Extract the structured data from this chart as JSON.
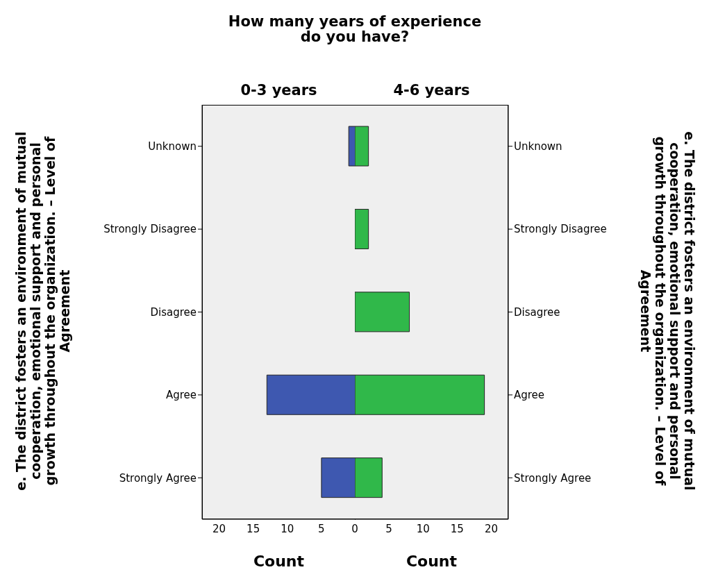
{
  "chart_data": [
    {
      "type": "bar",
      "orientation": "horizontal",
      "title": "How many years of experience do you have?",
      "subtitle": "0-3 years",
      "xlabel": "Count",
      "ylabel": "e. The district fosters an environment of mutual cooperation, emotional support and personal growth throughout the organization. – Level of Agreement",
      "categories": [
        "Unknown",
        "Strongly Disagree",
        "Disagree",
        "Agree",
        "Strongly Agree"
      ],
      "series": [
        {
          "color": "#3e58b0",
          "values": [
            1,
            0,
            0,
            13,
            5
          ]
        }
      ],
      "xlim": [
        22.5,
        0
      ],
      "xticks": [
        20,
        15,
        10,
        5
      ],
      "legend": false
    },
    {
      "type": "bar",
      "orientation": "horizontal",
      "title": "4-6 years",
      "xlabel": "Count",
      "y2label": "e. The district fosters an environment of mutual cooperation, emotional support and personal growth throughout the organization. – Level of Agreement",
      "categories": [
        "Unknown",
        "Strongly Disagree",
        "Disagree",
        "Agree",
        "Strongly Agree"
      ],
      "series": [
        {
          "color": "#30b84a",
          "values": [
            2,
            2,
            8,
            19,
            4
          ]
        }
      ],
      "xlim": [
        0,
        22.5
      ],
      "xticks": [
        0,
        5,
        10,
        15,
        20
      ],
      "legend": false
    }
  ]
}
